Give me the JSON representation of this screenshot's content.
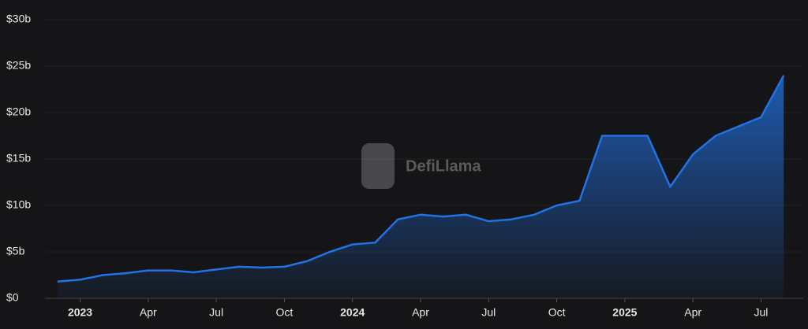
{
  "chart_data": {
    "type": "area",
    "watermark": "DefiLlama",
    "x": [
      "2022-12",
      "2023-01",
      "2023-02",
      "2023-03",
      "2023-04",
      "2023-05",
      "2023-06",
      "2023-07",
      "2023-08",
      "2023-09",
      "2023-10",
      "2023-11",
      "2023-12",
      "2024-01",
      "2024-02",
      "2024-03",
      "2024-04",
      "2024-05",
      "2024-06",
      "2024-07",
      "2024-08",
      "2024-09",
      "2024-10",
      "2024-11",
      "2024-12",
      "2025-01",
      "2025-02",
      "2025-03",
      "2025-04",
      "2025-05",
      "2025-06",
      "2025-07",
      "2025-08"
    ],
    "values": [
      1.8,
      2.0,
      2.5,
      2.7,
      3.0,
      3.0,
      2.8,
      3.1,
      3.4,
      3.3,
      3.4,
      4.0,
      5.0,
      5.8,
      6.0,
      8.5,
      9.0,
      8.8,
      9.0,
      8.3,
      8.5,
      9.0,
      10.0,
      10.5,
      17.5,
      17.5,
      17.5,
      12.0,
      15.5,
      17.5,
      18.5,
      19.5,
      24.0
    ],
    "color": "#2172e5",
    "xlim": [
      "2022-11",
      "2025-09"
    ],
    "xticks": [
      {
        "value": "2023-01",
        "label": "2023"
      },
      {
        "value": "2023-04",
        "label": "Apr"
      },
      {
        "value": "2023-07",
        "label": "Jul"
      },
      {
        "value": "2023-10",
        "label": "Oct"
      },
      {
        "value": "2024-01",
        "label": "2024"
      },
      {
        "value": "2024-04",
        "label": "Apr"
      },
      {
        "value": "2024-07",
        "label": "Jul"
      },
      {
        "value": "2024-10",
        "label": "Oct"
      },
      {
        "value": "2025-01",
        "label": "2025"
      },
      {
        "value": "2025-04",
        "label": "Apr"
      },
      {
        "value": "2025-07",
        "label": "Jul"
      }
    ],
    "ylim": [
      0,
      30
    ],
    "yticks": [
      {
        "value": 0,
        "label": "$0"
      },
      {
        "value": 5,
        "label": "$5b"
      },
      {
        "value": 10,
        "label": "$10b"
      },
      {
        "value": 15,
        "label": "$15b"
      },
      {
        "value": 20,
        "label": "$20b"
      },
      {
        "value": 25,
        "label": "$25b"
      },
      {
        "value": 30,
        "label": "$30b"
      }
    ],
    "grid": true
  }
}
